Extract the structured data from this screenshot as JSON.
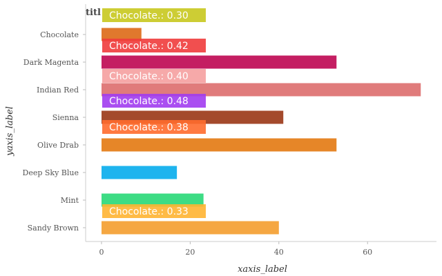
{
  "chart_data": {
    "type": "bar",
    "orientation": "horizontal",
    "title": "titl",
    "xlabel": "xaxis_label",
    "ylabel": "yaxis_label",
    "xlim": [
      0,
      75
    ],
    "xticks": [
      0,
      20,
      40,
      60
    ],
    "grid": false,
    "categories": [
      "Sandy Brown",
      "Mint",
      "Deep Sky Blue",
      "Olive Drab",
      "Sienna",
      "Indian Red",
      "Dark Magenta",
      "Chocolate"
    ],
    "values": [
      40,
      23,
      17,
      53,
      41,
      72,
      53,
      9
    ],
    "colors": [
      "#f5a742",
      "#3ddc84",
      "#1eb4ee",
      "#e68628",
      "#a44a2c",
      "#e07b7b",
      "#c41e62",
      "#e0782d"
    ],
    "tooltips": [
      {
        "text": "Chocolate.: 0.30",
        "color": "#c8c81e"
      },
      {
        "text": "Chocolate.: 0.42",
        "color": "#f03c3c"
      },
      {
        "text": "Chocolate.: 0.40",
        "color": "#f5a0a0"
      },
      {
        "text": "Chocolate.: 0.48",
        "color": "#a13cf0"
      },
      {
        "text": "Chocolate.: 0.38",
        "color": "#ff6b2d"
      },
      {
        "text": "Chocolate.: 0.33",
        "color": "#ffb432"
      }
    ]
  }
}
